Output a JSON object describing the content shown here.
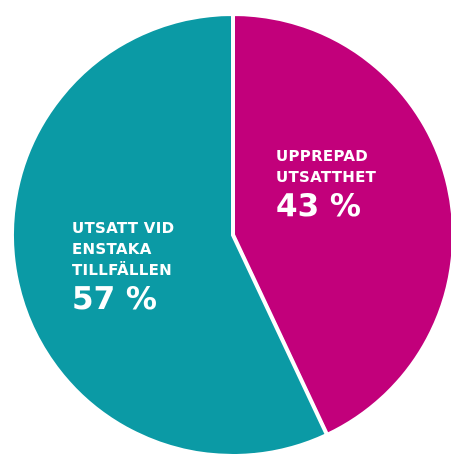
{
  "chart_data": {
    "type": "pie",
    "categories": [
      "UPPREPAD UTSATTHET",
      "UTSATT VID ENSTAKA TILLFÄLLEN"
    ],
    "values": [
      43,
      57
    ],
    "value_labels": [
      "43 %",
      "57 %"
    ],
    "colors": [
      "#c2007b",
      "#0b9aa5"
    ]
  }
}
